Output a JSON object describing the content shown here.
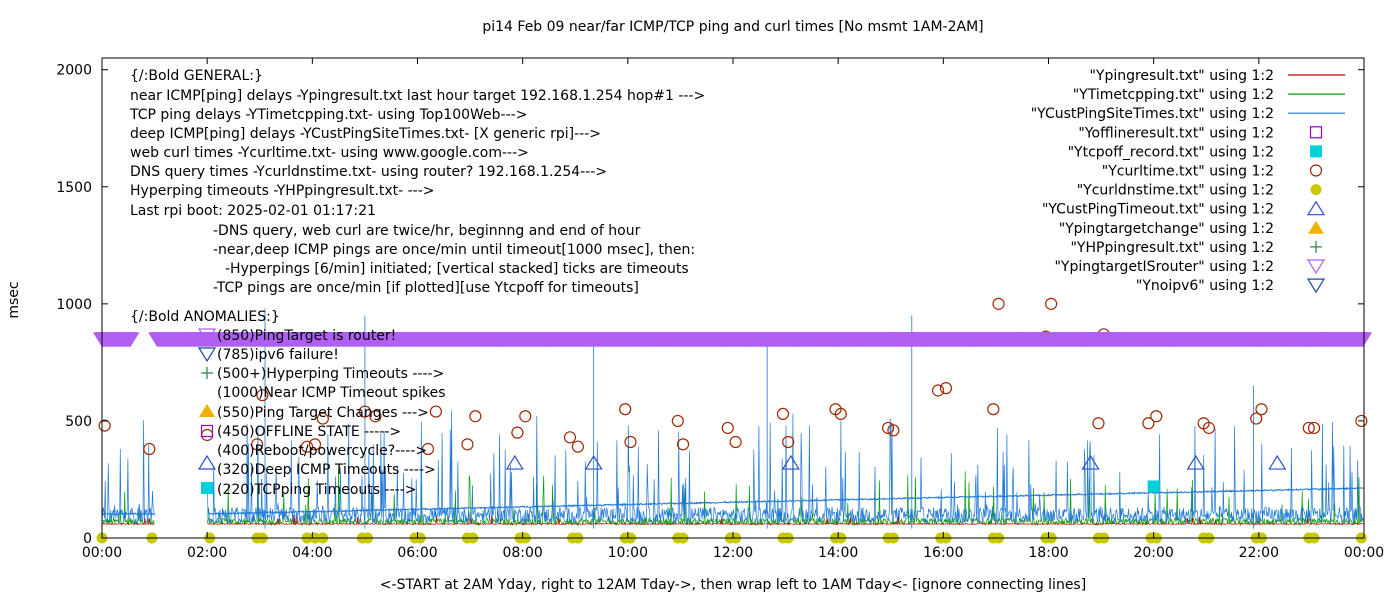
{
  "chart_data": {
    "type": "line",
    "title": "pi14 Feb 09  near/far ICMP/TCP ping and curl times [No msmt 1AM-2AM]",
    "xlabel": "<-START at 2AM Yday, right to 12AM Tday->, then wrap left to 1AM Tday<- [ignore connecting lines]",
    "ylabel": "msec",
    "xlim": [
      0,
      24
    ],
    "ylim": [
      0,
      2050
    ],
    "x_ticks": [
      {
        "v": 0,
        "label": "00:00"
      },
      {
        "v": 2,
        "label": "02:00"
      },
      {
        "v": 4,
        "label": "04:00"
      },
      {
        "v": 6,
        "label": "06:00"
      },
      {
        "v": 8,
        "label": "08:00"
      },
      {
        "v": 10,
        "label": "10:00"
      },
      {
        "v": 12,
        "label": "12:00"
      },
      {
        "v": 14,
        "label": "14:00"
      },
      {
        "v": 16,
        "label": "16:00"
      },
      {
        "v": 18,
        "label": "18:00"
      },
      {
        "v": 20,
        "label": "20:00"
      },
      {
        "v": 22,
        "label": "22:00"
      },
      {
        "v": 24,
        "label": "00:00"
      }
    ],
    "y_ticks": [
      {
        "v": 0,
        "label": "0"
      },
      {
        "v": 500,
        "label": "500"
      },
      {
        "v": 1000,
        "label": "1000"
      },
      {
        "v": 1500,
        "label": "1500"
      },
      {
        "v": 2000,
        "label": "2000"
      }
    ],
    "grid": false,
    "legend_position": "top-right",
    "legend": [
      {
        "label": "\"Ypingresult.txt\" using 1:2",
        "kind": "line",
        "color": "#cc0000"
      },
      {
        "label": "\"YTimetcpping.txt\" using 1:2",
        "kind": "line",
        "color": "#00a000"
      },
      {
        "label": "\"YCustPingSiteTimes.txt\" using 1:2",
        "kind": "line",
        "color": "#1f78d8"
      },
      {
        "label": "\"Yofflineresult.txt\" using 1:2",
        "kind": "square-open",
        "color": "#9400d3"
      },
      {
        "label": "\"Ytcpoff_record.txt\" using 1:2",
        "kind": "square-filled",
        "color": "#00d0d8"
      },
      {
        "label": "\"Ycurltime.txt\" using 1:2",
        "kind": "circle-open",
        "color": "#a02800"
      },
      {
        "label": "\"Ycurldnstime.txt\" using 1:2",
        "kind": "circle-filled",
        "color": "#c8c800"
      },
      {
        "label": "\"YCustPingTimeout.txt\" using 1:2",
        "kind": "triangle-up-open",
        "color": "#3050c8"
      },
      {
        "label": "\"Ypingtargetchange\" using 1:2",
        "kind": "triangle-up-filled",
        "color": "#f0b000"
      },
      {
        "label": "\"YHPpingresult.txt\" using 1:2",
        "kind": "plus",
        "color": "#208040"
      },
      {
        "label": "\"YpingtargetISrouter\" using 1:2",
        "kind": "triangle-down-open",
        "color": "#b060f0"
      },
      {
        "label": "\"Ynoipv6\" using 1:2",
        "kind": "triangle-down-open",
        "color": "#1848a0"
      }
    ],
    "annotations": [
      "{/:Bold GENERAL:}",
      "near ICMP[ping] delays -Ypingresult.txt last hour target 192.168.1.254 hop#1 --->",
      "TCP ping delays -YTimetcpping.txt- using Top100Web--->",
      "deep ICMP[ping] delays -YCustPingSiteTimes.txt- [X generic rpi]--->",
      "web curl times -Ycurltime.txt- using www.google.com--->",
      "DNS query times -Ycurldnstime.txt- using router? 192.168.1.254--->",
      "Hyperping timeouts -YHPpingresult.txt- --->",
      "Last rpi boot: 2025-02-01 01:17:21",
      "-DNS query, web curl are twice/hr, beginnng and end of hour",
      "-near,deep ICMP pings are once/min until timeout[1000 msec], then:",
      "-Hyperpings [6/min] initiated; [vertical stacked] ticks are timeouts",
      "-TCP pings are once/min [if plotted][use Ytcpoff for timeouts]",
      "{/:Bold ANOMALIES:}",
      "(850)PingTarget is router!",
      "(785)ipv6 failure!",
      "(500+)Hyperping Timeouts ---->",
      "(1000)Near ICMP Timeout spikes",
      "(550)Ping Target Changes --->",
      "(450)OFFLINE STATE ----->",
      "(400)Reboot/powercycle?---->",
      "(320)Deep ICMP Timeouts ---->",
      "(220)TCPping Timeouts ---->"
    ],
    "series": [
      {
        "name": "\"Ycurltime.txt\" using 1:2",
        "kind": "circle-open",
        "color": "#a02800",
        "x": [
          0.05,
          0.9,
          2.0,
          2.95,
          3.05,
          3.9,
          4.05,
          4.2,
          5.0,
          5.2,
          6.2,
          6.35,
          6.95,
          7.1,
          7.9,
          8.05,
          8.9,
          9.05,
          9.95,
          10.05,
          10.95,
          11.05,
          11.9,
          12.05,
          12.95,
          13.05,
          13.95,
          14.05,
          14.95,
          15.05,
          15.9,
          16.05,
          16.95,
          17.05,
          17.95,
          18.05,
          18.95,
          19.05,
          19.9,
          20.05,
          20.95,
          21.05,
          21.95,
          22.05,
          22.95,
          23.05,
          23.95
        ],
        "y": [
          480,
          380,
          440,
          400,
          610,
          390,
          400,
          510,
          540,
          520,
          380,
          540,
          400,
          520,
          450,
          520,
          430,
          390,
          550,
          410,
          500,
          400,
          470,
          410,
          530,
          410,
          550,
          530,
          470,
          460,
          630,
          640,
          550,
          1000,
          860,
          1000,
          490,
          870,
          490,
          520,
          490,
          470,
          510,
          550,
          470,
          470,
          500
        ]
      },
      {
        "name": "\"Ycurldnstime.txt\" using 1:2",
        "kind": "circle-filled",
        "color": "#c8c800",
        "x": [
          0,
          0.95,
          2.05,
          2.95,
          3.05,
          3.9,
          4.05,
          4.2,
          4.95,
          5.05,
          5.95,
          6.05,
          6.95,
          7.05,
          7.95,
          8.05,
          8.95,
          9.05,
          9.95,
          10.05,
          10.95,
          11.05,
          11.95,
          12.05,
          12.95,
          13.05,
          13.95,
          14.05,
          14.95,
          15.05,
          15.95,
          16.05,
          16.95,
          17.05,
          17.95,
          18.05,
          18.95,
          19.05,
          19.95,
          20.05,
          20.95,
          21.05,
          21.95,
          22.05,
          22.95,
          23.05,
          23.95
        ],
        "y": [
          0,
          0,
          0,
          0,
          0,
          0,
          0,
          0,
          0,
          0,
          0,
          0,
          0,
          0,
          0,
          0,
          0,
          0,
          0,
          0,
          0,
          0,
          0,
          0,
          0,
          0,
          0,
          0,
          0,
          0,
          0,
          0,
          0,
          0,
          0,
          0,
          0,
          0,
          0,
          0,
          0,
          0,
          0,
          0,
          0,
          0,
          0
        ]
      },
      {
        "name": "\"YCustPingTimeout.txt\" using 1:2",
        "kind": "triangle-up-open",
        "color": "#3050c8",
        "x": [
          7.85,
          9.35,
          13.1,
          18.8,
          20.8,
          22.35
        ],
        "y": [
          320,
          320,
          320,
          320,
          320,
          320
        ]
      },
      {
        "name": "\"Ytcpoff_record.txt\" using 1:2",
        "kind": "square-filled",
        "color": "#00d0d8",
        "x": [
          20.0
        ],
        "y": [
          220
        ]
      },
      {
        "name": "\"YpingtargetISrouter\" using 1:2",
        "kind": "triangle-down-band",
        "color": "#b060f0",
        "segments": [
          [
            0.0,
            0.55
          ],
          [
            1.05,
            24.0
          ]
        ],
        "y": [
          850
        ]
      }
    ]
  }
}
